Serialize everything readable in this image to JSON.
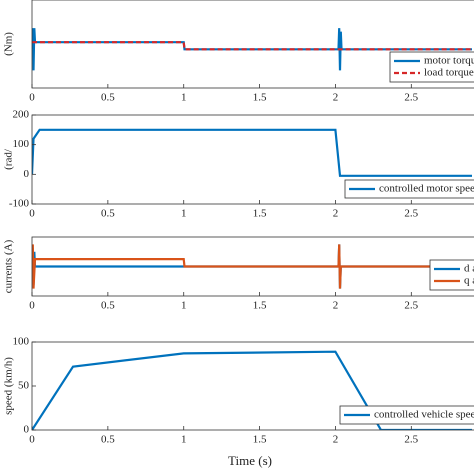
{
  "chart_data": [
    {
      "type": "line",
      "y_label": "(Nm)",
      "xlim": [
        0,
        2.9
      ],
      "ylim": [
        -55,
        70
      ],
      "xticks": [
        0,
        0.5,
        1,
        1.5,
        2,
        2.5
      ],
      "yticks": [],
      "legend": "lower right",
      "series": [
        {
          "name": "motor torque",
          "color": "#0072bd",
          "linestyle": "solid",
          "x": [
            0,
            0.005,
            0.01,
            0.015,
            0.02,
            0.03,
            1,
            1.005,
            2.02,
            2.025,
            2.03,
            2.035,
            2.04,
            2.9
          ],
          "values": [
            0,
            30,
            -30,
            30,
            10,
            10,
            10,
            0,
            0,
            30,
            -30,
            25,
            0,
            0
          ]
        },
        {
          "name": "load torque",
          "color": "#d62728",
          "linestyle": "dashed",
          "x": [
            0,
            1,
            1.005,
            2.9
          ],
          "values": [
            10,
            10,
            0,
            0
          ]
        }
      ]
    },
    {
      "type": "line",
      "y_label": "(rad/",
      "xlim": [
        0,
        2.9
      ],
      "ylim": [
        -100,
        200
      ],
      "xticks": [
        0,
        0.5,
        1,
        1.5,
        2,
        2.5
      ],
      "yticks": [
        -100,
        0,
        100,
        200
      ],
      "legend": "lower right",
      "series": [
        {
          "name": "controlled motor speed",
          "color": "#0072bd",
          "linestyle": "solid",
          "x": [
            0,
            0.01,
            0.05,
            2,
            2.03,
            2.05,
            2.9
          ],
          "values": [
            0,
            120,
            150,
            150,
            -5,
            -5,
            -5
          ]
        }
      ]
    },
    {
      "type": "line",
      "y_label": "currents (A)",
      "xlim": [
        0,
        2.9
      ],
      "ylim": [
        -40,
        40
      ],
      "xticks": [
        0,
        0.5,
        1,
        1.5,
        2,
        2.5
      ],
      "yticks": [],
      "legend": "lower right",
      "series": [
        {
          "name": "d axis",
          "color": "#0072bd",
          "linestyle": "solid",
          "x": [
            0,
            0.005,
            0.01,
            0.015,
            0.02,
            2.02,
            2.025,
            2.03,
            2.035,
            2.9
          ],
          "values": [
            0,
            25,
            -25,
            20,
            0,
            0,
            30,
            -30,
            0,
            0
          ]
        },
        {
          "name": "q axis",
          "color": "#d95319",
          "linestyle": "solid",
          "x": [
            0,
            0.005,
            0.01,
            0.02,
            0.03,
            1,
            1.005,
            2.02,
            2.025,
            2.03,
            2.035,
            2.9
          ],
          "values": [
            0,
            30,
            -30,
            10,
            10,
            10,
            0,
            0,
            30,
            -30,
            0,
            0
          ]
        }
      ]
    },
    {
      "type": "line",
      "y_label": "speed (km/h)",
      "x_label": "Time (s)",
      "xlim": [
        0,
        2.9
      ],
      "ylim": [
        0,
        100
      ],
      "xticks": [
        0,
        0.5,
        1,
        1.5,
        2,
        2.5
      ],
      "yticks": [
        0,
        50,
        100
      ],
      "legend": "lower right",
      "series": [
        {
          "name": "controlled vehicle speed",
          "color": "#0072bd",
          "linestyle": "solid",
          "x": [
            0,
            0.27,
            1,
            2,
            2.3,
            2.9
          ],
          "values": [
            0,
            72,
            87,
            89,
            0,
            0
          ]
        }
      ]
    }
  ]
}
